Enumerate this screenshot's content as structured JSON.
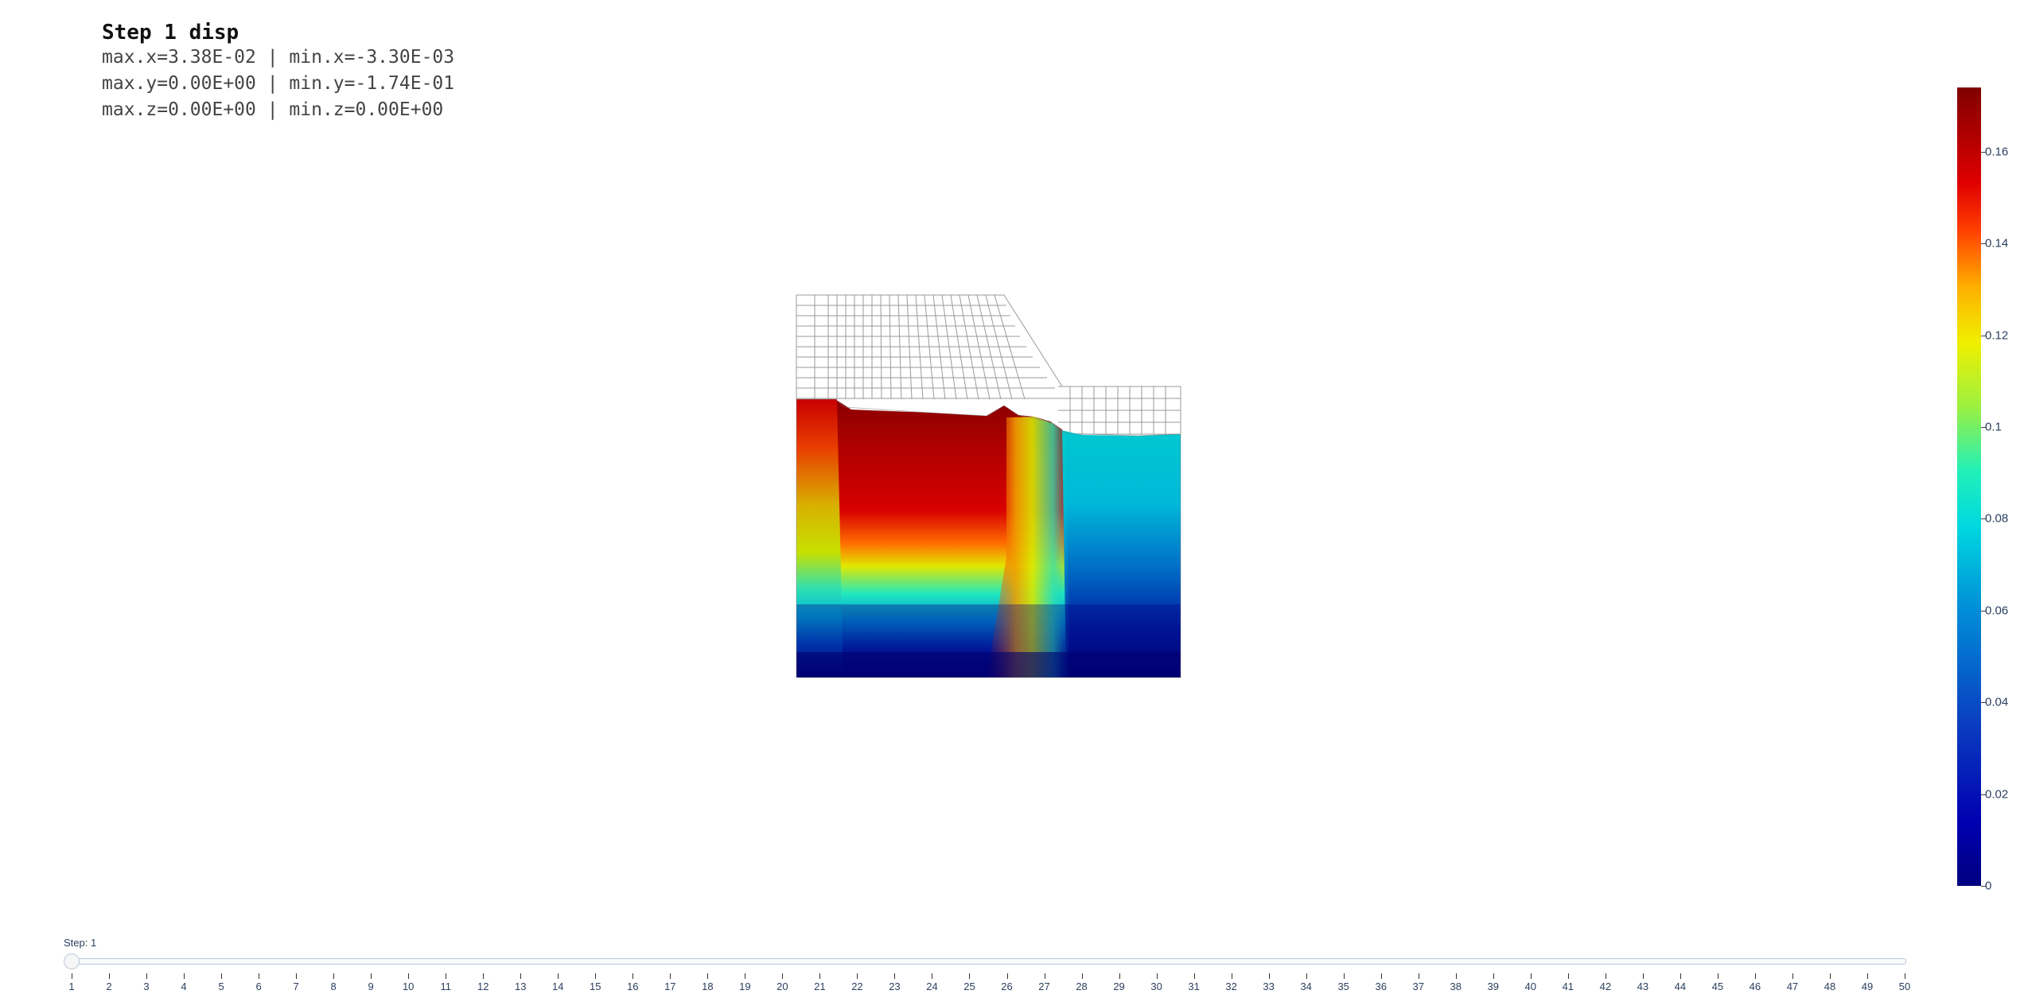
{
  "header": {
    "title": "Step 1 disp",
    "line_x": "max.x=3.38E-02 | min.x=-3.30E-03",
    "line_y": "max.y=0.00E+00 | min.y=-1.74E-01",
    "line_z": "max.z=0.00E+00 | min.z=0.00E+00"
  },
  "colorbar": {
    "ticks": [
      "0",
      "0.02",
      "0.04",
      "0.06",
      "0.08",
      "0.1",
      "0.12",
      "0.14",
      "0.16"
    ],
    "values": [
      0,
      0.02,
      0.04,
      0.06,
      0.08,
      0.1,
      0.12,
      0.14,
      0.16
    ],
    "min": 0,
    "max": 0.174,
    "colorscale": "jet"
  },
  "slider": {
    "label": "Step: 1",
    "current": 1,
    "steps": [
      "1",
      "2",
      "3",
      "4",
      "5",
      "6",
      "7",
      "8",
      "9",
      "10",
      "11",
      "12",
      "13",
      "14",
      "15",
      "16",
      "17",
      "18",
      "19",
      "20",
      "21",
      "22",
      "23",
      "24",
      "25",
      "26",
      "27",
      "28",
      "29",
      "30",
      "31",
      "32",
      "33",
      "34",
      "35",
      "36",
      "37",
      "38",
      "39",
      "40",
      "41",
      "42",
      "43",
      "44",
      "45",
      "46",
      "47",
      "48",
      "49",
      "50"
    ]
  }
}
